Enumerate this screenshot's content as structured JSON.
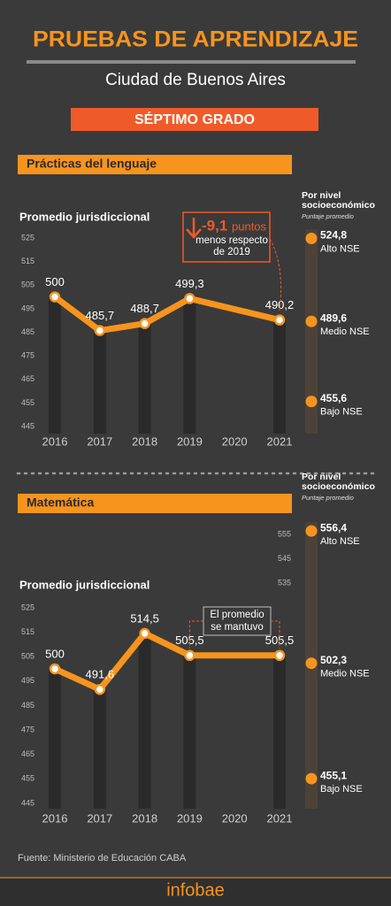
{
  "header": {
    "title": "PRUEBAS DE APRENDIZAJE",
    "subtitle": "Ciudad de Buenos Aires",
    "badge": "SÉPTIMO GRADO"
  },
  "chart_data": [
    {
      "type": "line",
      "title": "Prácticas del lenguaje",
      "ylabel": "Promedio jurisdiccional",
      "x": [
        2016,
        2017,
        2018,
        2019,
        2021
      ],
      "values": [
        500,
        485.7,
        488.7,
        499.3,
        490.2
      ],
      "value_labels": [
        "500",
        "485,7",
        "488,7",
        "499,3",
        "490,2"
      ],
      "xlim": [
        2016,
        2021
      ],
      "xticks": [
        2016,
        2017,
        2018,
        2019,
        2020,
        2021
      ],
      "ylim": [
        445,
        525
      ],
      "yticks": [
        445,
        455,
        465,
        475,
        485,
        495,
        505,
        515,
        525
      ],
      "color": "#f7941d",
      "annotation": {
        "change": "-9,1",
        "unit": "puntos",
        "lines": [
          "menos respecto",
          "de 2019"
        ]
      },
      "nse": {
        "title": [
          "Por nivel",
          "socioeconómico"
        ],
        "subtitle": "Puntaje promedio",
        "categories": [
          "Alto NSE",
          "Medio NSE",
          "Bajo NSE"
        ],
        "values": [
          524.8,
          489.6,
          455.6
        ],
        "value_labels": [
          "524,8",
          "489,6",
          "455,6"
        ]
      }
    },
    {
      "type": "line",
      "title": "Matemática",
      "ylabel": "Promedio jurisdiccional",
      "x": [
        2016,
        2017,
        2018,
        2019,
        2021
      ],
      "values": [
        500,
        491.6,
        514.5,
        505.5,
        505.5
      ],
      "value_labels": [
        "500",
        "491,6",
        "514,5",
        "505,5",
        "505,5"
      ],
      "xlim": [
        2016,
        2021
      ],
      "xticks": [
        2016,
        2017,
        2018,
        2019,
        2020,
        2021
      ],
      "ylim": [
        445,
        555
      ],
      "yticks": [
        445,
        455,
        465,
        475,
        485,
        495,
        505,
        515,
        525
      ],
      "color": "#f7941d",
      "annotation": {
        "lines": [
          "El promedio",
          "se mantuvo"
        ]
      },
      "nse": {
        "title": [
          "Por nivel",
          "socioeconómico"
        ],
        "subtitle": "Puntaje promedio",
        "categories": [
          "Alto NSE",
          "Medio NSE",
          "Bajo NSE"
        ],
        "values": [
          556.4,
          502.3,
          455.1
        ],
        "value_labels": [
          "556,4",
          "502,3",
          "455,1"
        ],
        "yticks": [
          535,
          545,
          555
        ]
      }
    }
  ],
  "source": "Fuente: Ministerio de Educación CABA",
  "logo": "infobae"
}
